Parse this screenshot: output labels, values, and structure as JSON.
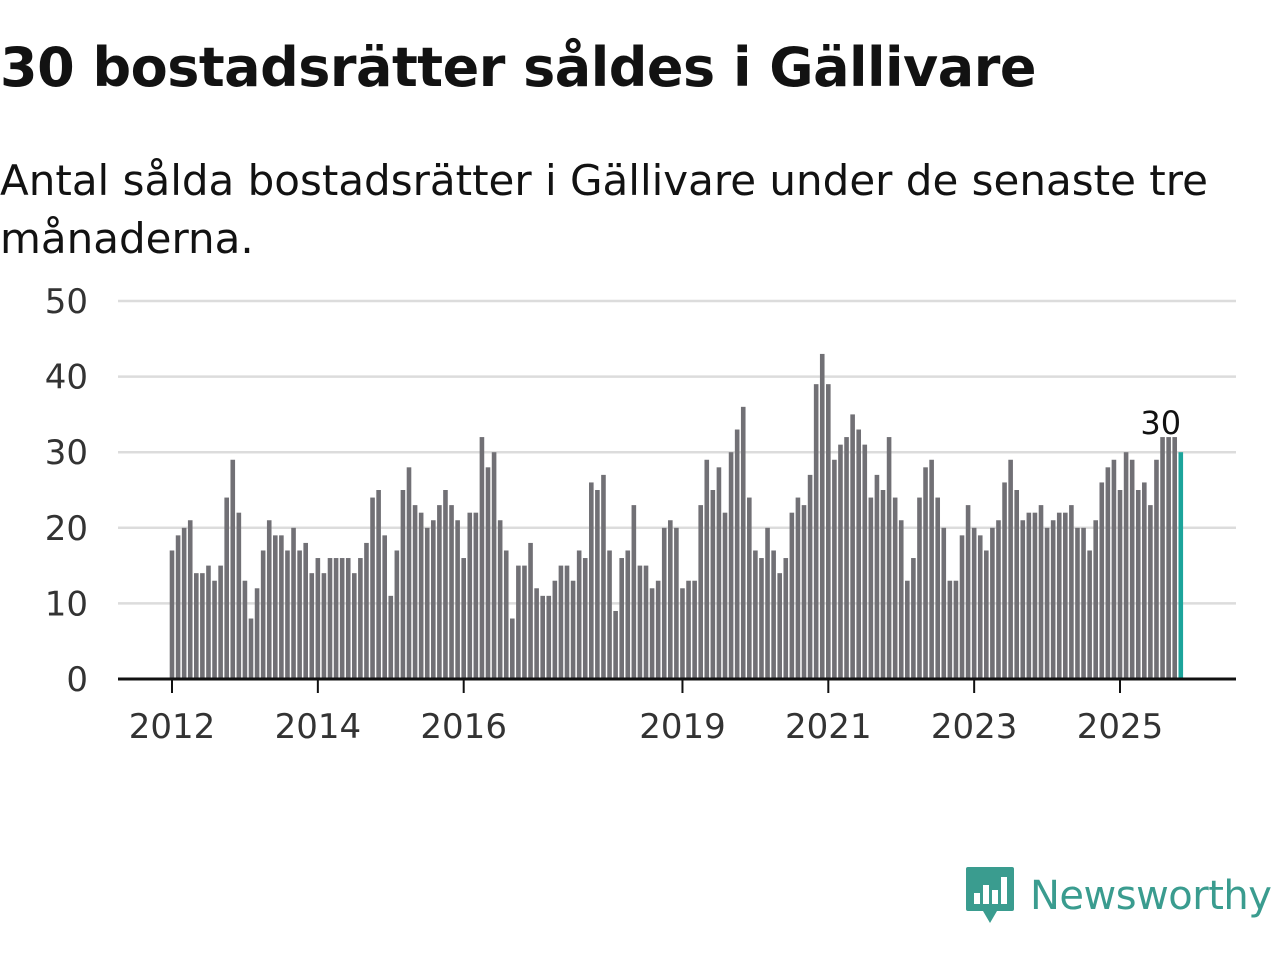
{
  "header": {
    "title": "30 bostadsrätter såldes i Gällivare",
    "subtitle": "Antal sålda bostadsrätter i Gällivare under de senaste tre månaderna."
  },
  "colors": {
    "bar": "#717075",
    "highlight": "#1ca49b",
    "grid": "#dcdcdc",
    "axis": "#111111",
    "brand": "#3a9c8f"
  },
  "chart_data": {
    "type": "bar",
    "title": "30 bostadsrätter såldes i Gällivare",
    "xlabel": "",
    "ylabel": "",
    "ylim": [
      0,
      50
    ],
    "yticks": [
      0,
      10,
      20,
      30,
      40,
      50
    ],
    "xticks": [
      {
        "label": "2012",
        "index": 0
      },
      {
        "label": "2014",
        "index": 24
      },
      {
        "label": "2016",
        "index": 48
      },
      {
        "label": "2019",
        "index": 84
      },
      {
        "label": "2021",
        "index": 108
      },
      {
        "label": "2023",
        "index": 132
      },
      {
        "label": "2025",
        "index": 156
      }
    ],
    "grid": true,
    "highlight_index": 166,
    "end_label": "30",
    "values": [
      17,
      19,
      20,
      21,
      14,
      14,
      15,
      13,
      15,
      24,
      29,
      22,
      13,
      8,
      12,
      17,
      21,
      19,
      19,
      17,
      20,
      17,
      18,
      14,
      16,
      14,
      16,
      16,
      16,
      16,
      14,
      16,
      18,
      24,
      25,
      19,
      11,
      17,
      25,
      28,
      23,
      22,
      20,
      21,
      23,
      25,
      23,
      21,
      16,
      22,
      22,
      32,
      28,
      30,
      21,
      17,
      8,
      15,
      15,
      18,
      12,
      11,
      11,
      13,
      15,
      15,
      13,
      17,
      16,
      26,
      25,
      27,
      17,
      9,
      16,
      17,
      23,
      15,
      15,
      12,
      13,
      20,
      21,
      20,
      12,
      13,
      13,
      23,
      29,
      25,
      28,
      22,
      30,
      33,
      36,
      24,
      17,
      16,
      20,
      17,
      14,
      16,
      22,
      24,
      23,
      27,
      39,
      43,
      39,
      29,
      31,
      32,
      35,
      33,
      31,
      24,
      27,
      25,
      32,
      24,
      21,
      13,
      16,
      24,
      28,
      29,
      24,
      20,
      13,
      13,
      19,
      23,
      20,
      19,
      17,
      20,
      21,
      26,
      29,
      25,
      21,
      22,
      22,
      23,
      20,
      21,
      22,
      22,
      23,
      20,
      20,
      17,
      21,
      26,
      28,
      29,
      25,
      30,
      29,
      25,
      26,
      23,
      29,
      32,
      32,
      32,
      30
    ]
  },
  "brand": {
    "name": "Newsworthy",
    "logo_icon": "newsworthy-logo-icon"
  }
}
